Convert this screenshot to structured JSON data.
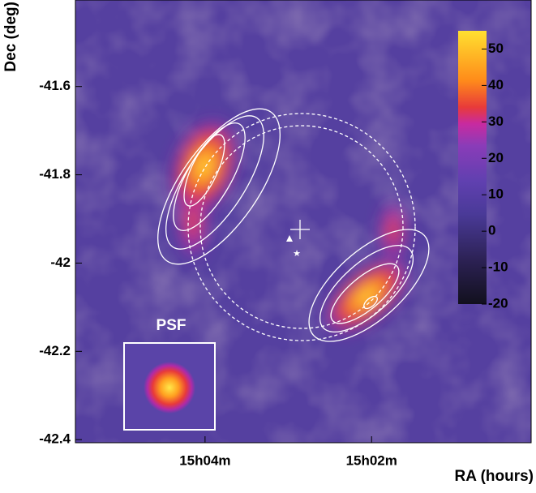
{
  "chart_data": {
    "type": "skymap",
    "xlabel": "RA (hours)",
    "ylabel": "Dec (deg)",
    "xlim": [
      15.0927,
      15.0013
    ],
    "xticks": [
      {
        "value": 15.0667,
        "label": "15h04m"
      },
      {
        "value": 15.0333,
        "label": "15h02m"
      }
    ],
    "ylim": [
      -42.407,
      -41.404
    ],
    "yticks": [
      -41.6,
      -41.8,
      -42,
      -42.2,
      -42.4
    ],
    "colorbar": {
      "zlim": [
        -20,
        55
      ],
      "ticks": [
        50,
        40,
        30,
        20,
        10,
        0,
        -10,
        -20
      ]
    },
    "inset_label": "PSF"
  }
}
